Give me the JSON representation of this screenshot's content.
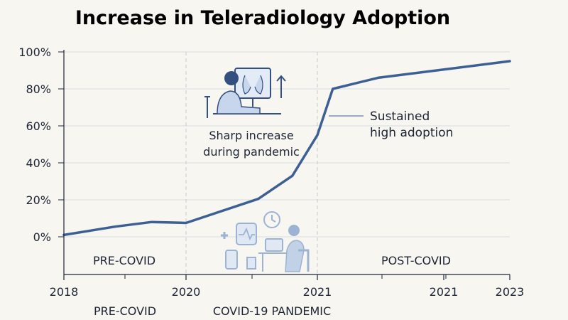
{
  "chart_data": {
    "type": "line",
    "title": "Increase in Teleradiology Adoption",
    "xlabel": "",
    "ylabel": "",
    "x_ticks": [
      "2018",
      "2020",
      "2021",
      "2021",
      "2023"
    ],
    "y_ticks": [
      "0%",
      "20%",
      "40%",
      "60%",
      "80%",
      "100%"
    ],
    "ylim": [
      0,
      100
    ],
    "grid": true,
    "series": [
      {
        "name": "",
        "x": [
          2018.0,
          2018.84,
          2019.44,
          2020.0,
          2020.55,
          2020.81,
          2021.0,
          2021.16,
          2021.63,
          2023.0
        ],
        "values": [
          1,
          5.5,
          8,
          7.5,
          20.5,
          33,
          55,
          80,
          86,
          95
        ]
      }
    ],
    "phase_labels": {
      "pre_covid_inner": "PRE-COVID",
      "post_covid_inner": "POST-COVID",
      "pre_covid_bottom": "PRE-COVID",
      "pandemic_bottom": "COVID-19 PANDEMIC"
    },
    "annotations": {
      "sharp_line1": "Sharp increase",
      "sharp_line2": "during pandemic",
      "sustained_line1": "Sustained",
      "sustained_line2": "high adoption"
    },
    "colors": {
      "line": "#3c5f94",
      "title": "#1e2c4c",
      "text": "#1d2535",
      "grid": "#d9dde3",
      "illustration": "#8ca8cf"
    },
    "icons": [
      "radiologist-workstation-icon",
      "telehealth-icons-illustration"
    ]
  }
}
